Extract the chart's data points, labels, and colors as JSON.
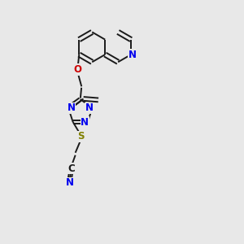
{
  "background_color": "#e8e8e8",
  "bond_color": "#1a1a1a",
  "n_color": "#0000ee",
  "o_color": "#cc0000",
  "s_color": "#808000",
  "figsize": [
    3.0,
    3.0
  ],
  "dpi": 100,
  "lw": 1.4,
  "fs": 8.5,
  "xlim": [
    0,
    10
  ],
  "ylim": [
    0,
    10
  ]
}
